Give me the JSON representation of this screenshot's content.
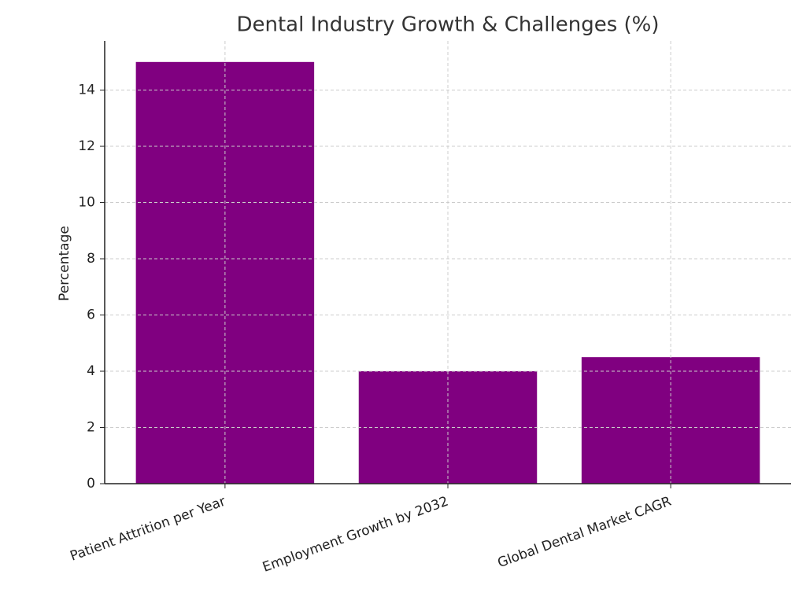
{
  "chart_data": {
    "type": "bar",
    "title": "Dental Industry Growth & Challenges (%)",
    "y_label": "Percentage",
    "categories": [
      "Patient Attrition per Year",
      "Employment Growth by 2032",
      "Global Dental Market CAGR"
    ],
    "values": [
      15,
      4,
      4.5
    ],
    "color": "#800080",
    "ylim": [
      0,
      15.75
    ],
    "yticks": [
      0,
      2,
      4,
      6,
      8,
      10,
      12,
      14
    ],
    "grid": true
  }
}
